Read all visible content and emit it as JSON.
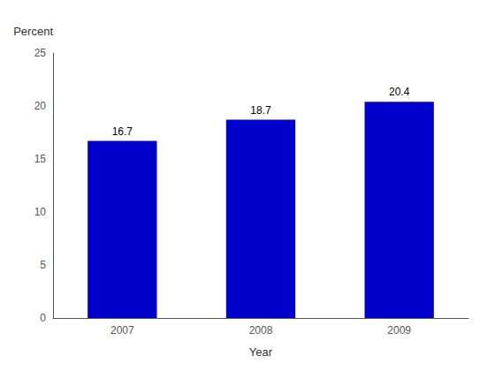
{
  "chart_data": {
    "type": "bar",
    "categories": [
      "2007",
      "2008",
      "2009"
    ],
    "values": [
      16.7,
      18.7,
      20.4
    ],
    "color": "#0000CC",
    "xlabel": "Year",
    "ylabel": "Percent",
    "ylim": [
      0,
      25
    ],
    "yticks": [
      0,
      5,
      10,
      15,
      20,
      25
    ],
    "grid": false,
    "data_labels": true
  }
}
